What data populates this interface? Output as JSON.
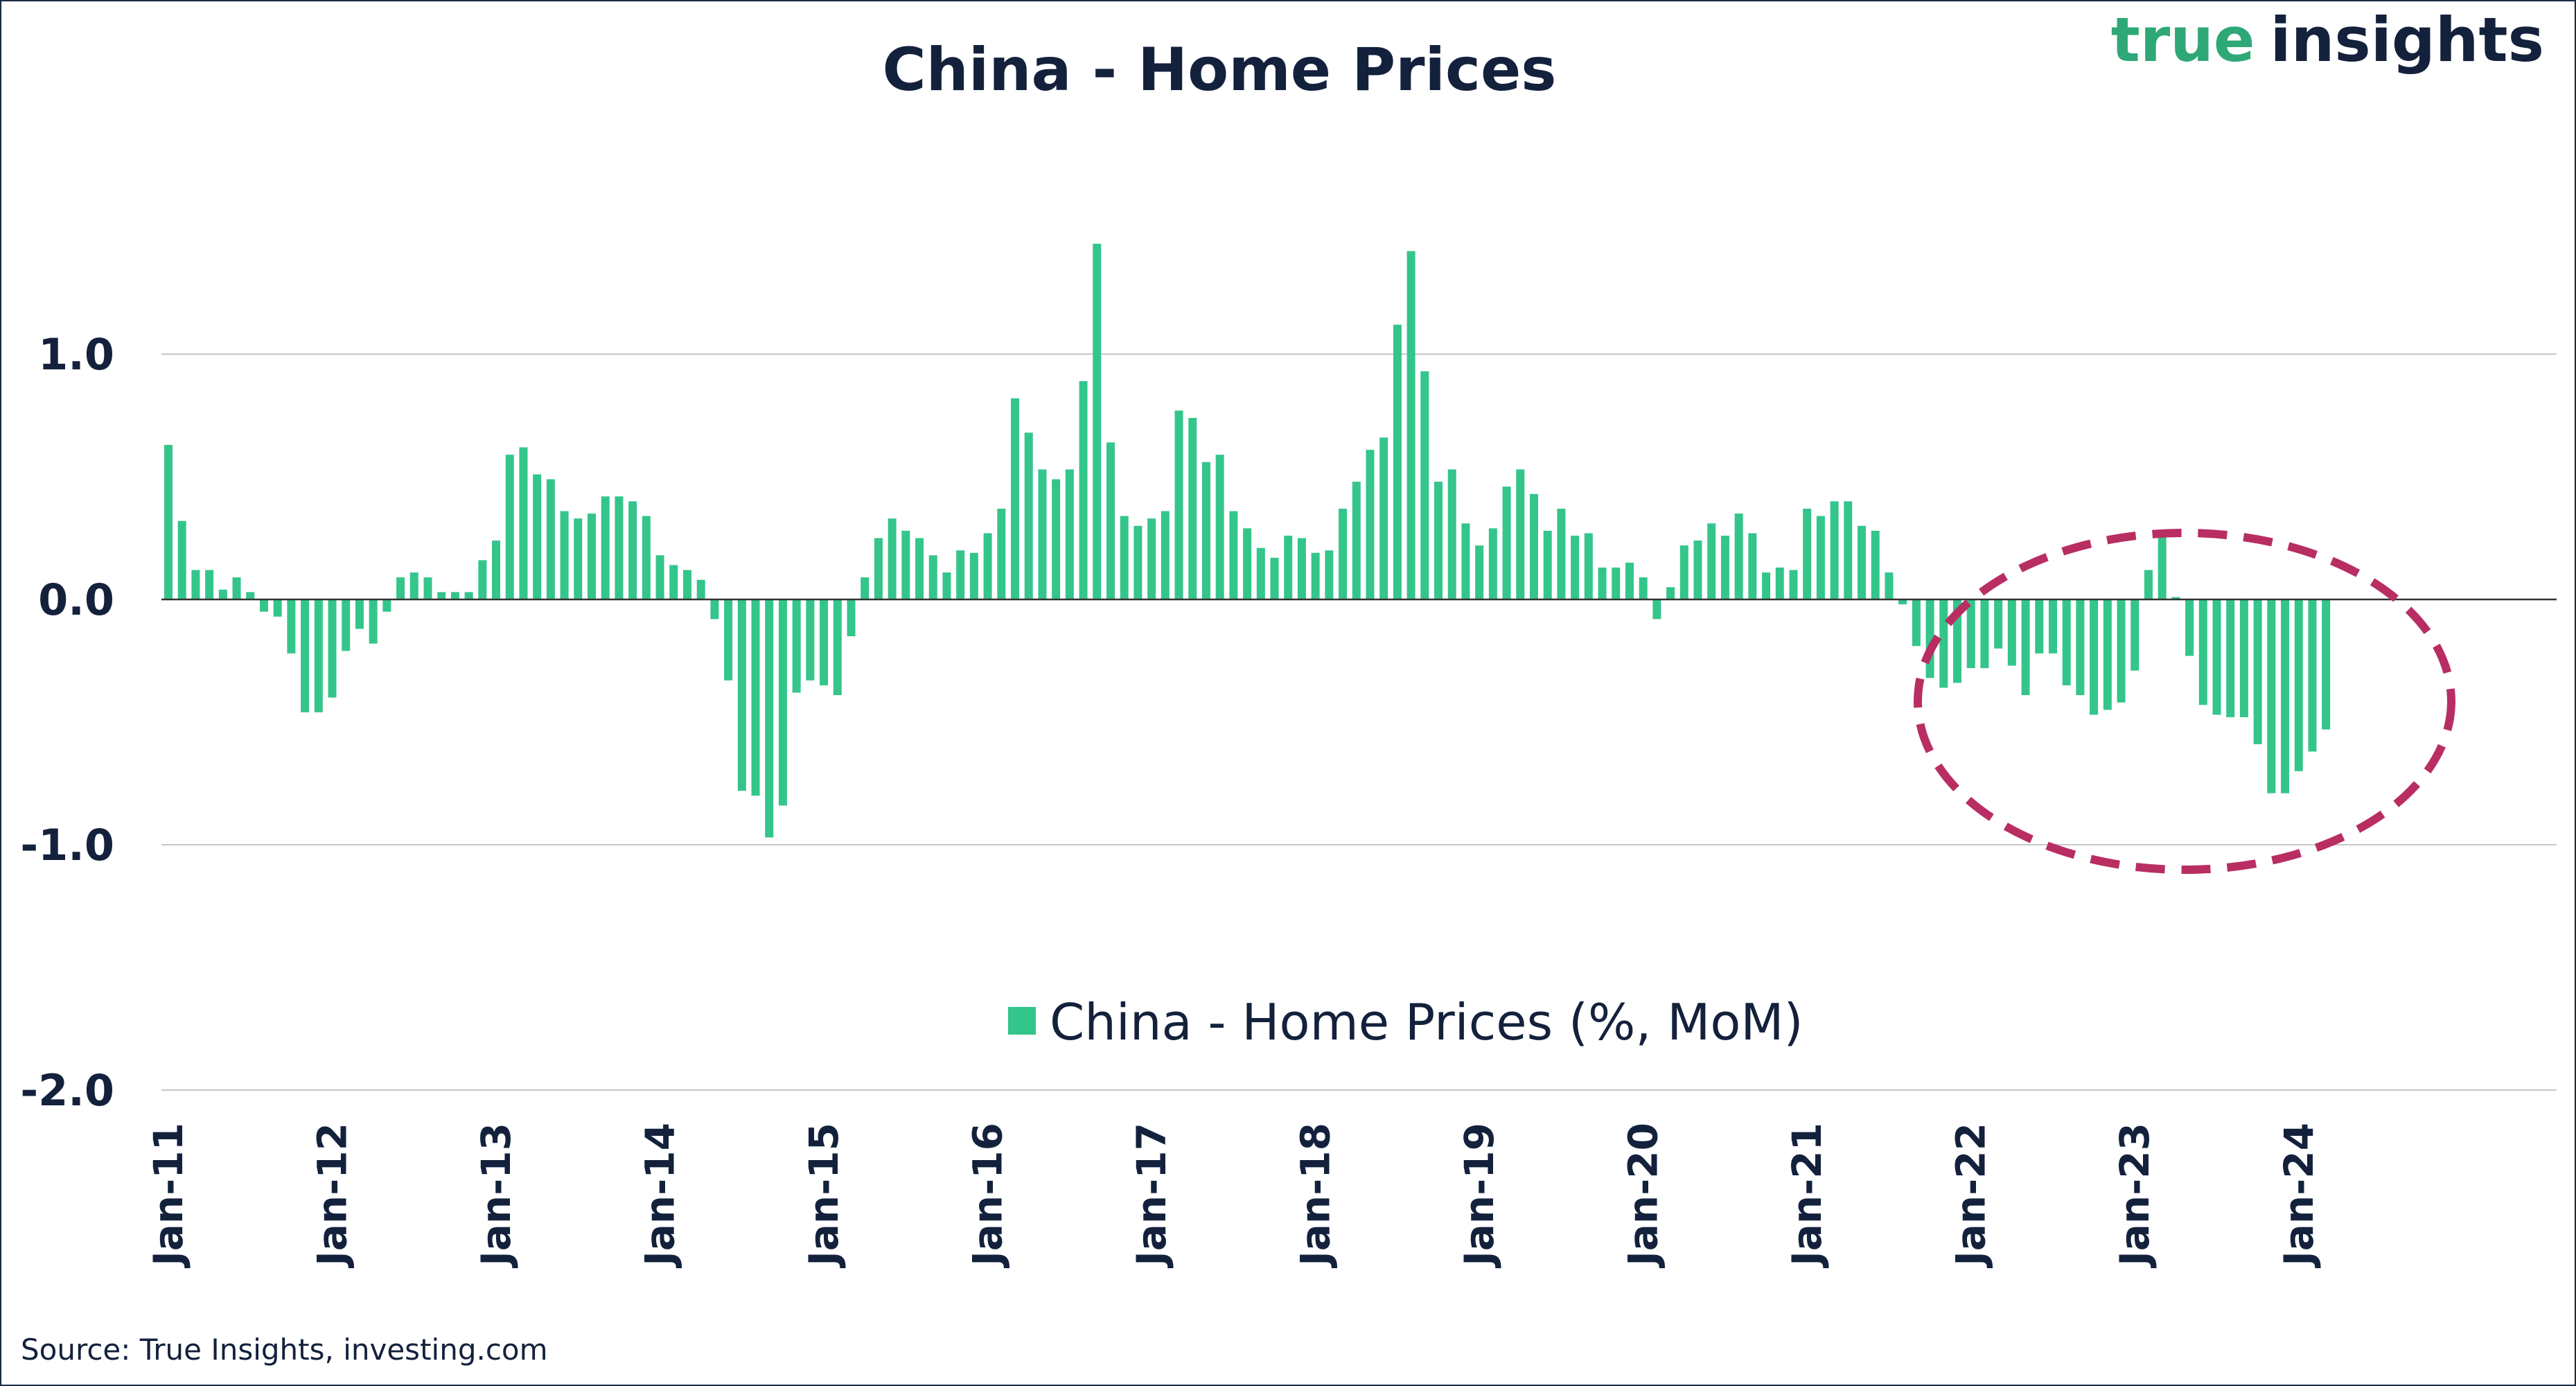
{
  "brand": {
    "word1": "true",
    "word2": "insights",
    "color1": "#2ea877",
    "color2": "#13213c"
  },
  "source": "Source: True Insights, investing.com",
  "colors": {
    "bar": "#34c58b",
    "text": "#13213c",
    "grid": "#c8c8c8",
    "zero_line": "#333333",
    "annotation": "#b82e63"
  },
  "chart_data": {
    "type": "bar",
    "title": "China - Home Prices",
    "xlabel": "",
    "ylabel": "",
    "ylim": [
      -2.0,
      1.5
    ],
    "yticks": [
      {
        "value": 1.0,
        "label": "1.0"
      },
      {
        "value": 0.0,
        "label": "0.0"
      },
      {
        "value": -1.0,
        "label": "-1.0"
      },
      {
        "value": -2.0,
        "label": "-2.0"
      }
    ],
    "start": "Jan-11",
    "xticks": [
      {
        "index": 0,
        "label": "Jan-11"
      },
      {
        "index": 12,
        "label": "Jan-12"
      },
      {
        "index": 24,
        "label": "Jan-13"
      },
      {
        "index": 36,
        "label": "Jan-14"
      },
      {
        "index": 48,
        "label": "Jan-15"
      },
      {
        "index": 60,
        "label": "Jan-16"
      },
      {
        "index": 72,
        "label": "Jan-17"
      },
      {
        "index": 84,
        "label": "Jan-18"
      },
      {
        "index": 96,
        "label": "Jan-19"
      },
      {
        "index": 108,
        "label": "Jan-20"
      },
      {
        "index": 120,
        "label": "Jan-21"
      },
      {
        "index": 132,
        "label": "Jan-22"
      },
      {
        "index": 144,
        "label": "Jan-23"
      },
      {
        "index": 156,
        "label": "Jan-24"
      }
    ],
    "legend_position": "bottom-center",
    "annotation": "dashed ellipse highlighting Jan-22 to Jan-24 declines",
    "series": [
      {
        "name": "China - Home Prices (%, MoM)",
        "values": [
          0.63,
          0.32,
          0.12,
          0.12,
          0.04,
          0.09,
          0.03,
          -0.05,
          -0.07,
          -0.22,
          -0.46,
          -0.46,
          -0.4,
          -0.21,
          -0.12,
          -0.18,
          -0.05,
          0.09,
          0.11,
          0.09,
          0.03,
          0.03,
          0.03,
          0.16,
          0.24,
          0.59,
          0.62,
          0.51,
          0.49,
          0.36,
          0.33,
          0.35,
          0.42,
          0.42,
          0.4,
          0.34,
          0.18,
          0.14,
          0.12,
          0.08,
          -0.08,
          -0.33,
          -0.78,
          -0.8,
          -0.97,
          -0.84,
          -0.38,
          -0.33,
          -0.35,
          -0.39,
          -0.15,
          0.09,
          0.25,
          0.33,
          0.28,
          0.25,
          0.18,
          0.11,
          0.2,
          0.19,
          0.27,
          0.37,
          0.82,
          0.68,
          0.53,
          0.49,
          0.53,
          0.89,
          1.45,
          0.64,
          0.34,
          0.3,
          0.33,
          0.36,
          0.77,
          0.74,
          0.56,
          0.59,
          0.36,
          0.29,
          0.21,
          0.17,
          0.26,
          0.25,
          0.19,
          0.2,
          0.37,
          0.48,
          0.61,
          0.66,
          1.12,
          1.42,
          0.93,
          0.48,
          0.53,
          0.31,
          0.22,
          0.29,
          0.46,
          0.53,
          0.43,
          0.28,
          0.37,
          0.26,
          0.27,
          0.13,
          0.13,
          0.15,
          0.09,
          -0.08,
          0.05,
          0.22,
          0.24,
          0.31,
          0.26,
          0.35,
          0.27,
          0.11,
          0.13,
          0.12,
          0.37,
          0.34,
          0.4,
          0.4,
          0.3,
          0.28,
          0.11,
          -0.02,
          -0.19,
          -0.32,
          -0.36,
          -0.34,
          -0.28,
          -0.28,
          -0.2,
          -0.27,
          -0.39,
          -0.22,
          -0.22,
          -0.35,
          -0.39,
          -0.47,
          -0.45,
          -0.42,
          -0.29,
          0.12,
          0.26,
          0.01,
          -0.23,
          -0.43,
          -0.47,
          -0.48,
          -0.48,
          -0.59,
          -0.79,
          -0.79,
          -0.7,
          -0.62,
          -0.53
        ]
      }
    ]
  }
}
